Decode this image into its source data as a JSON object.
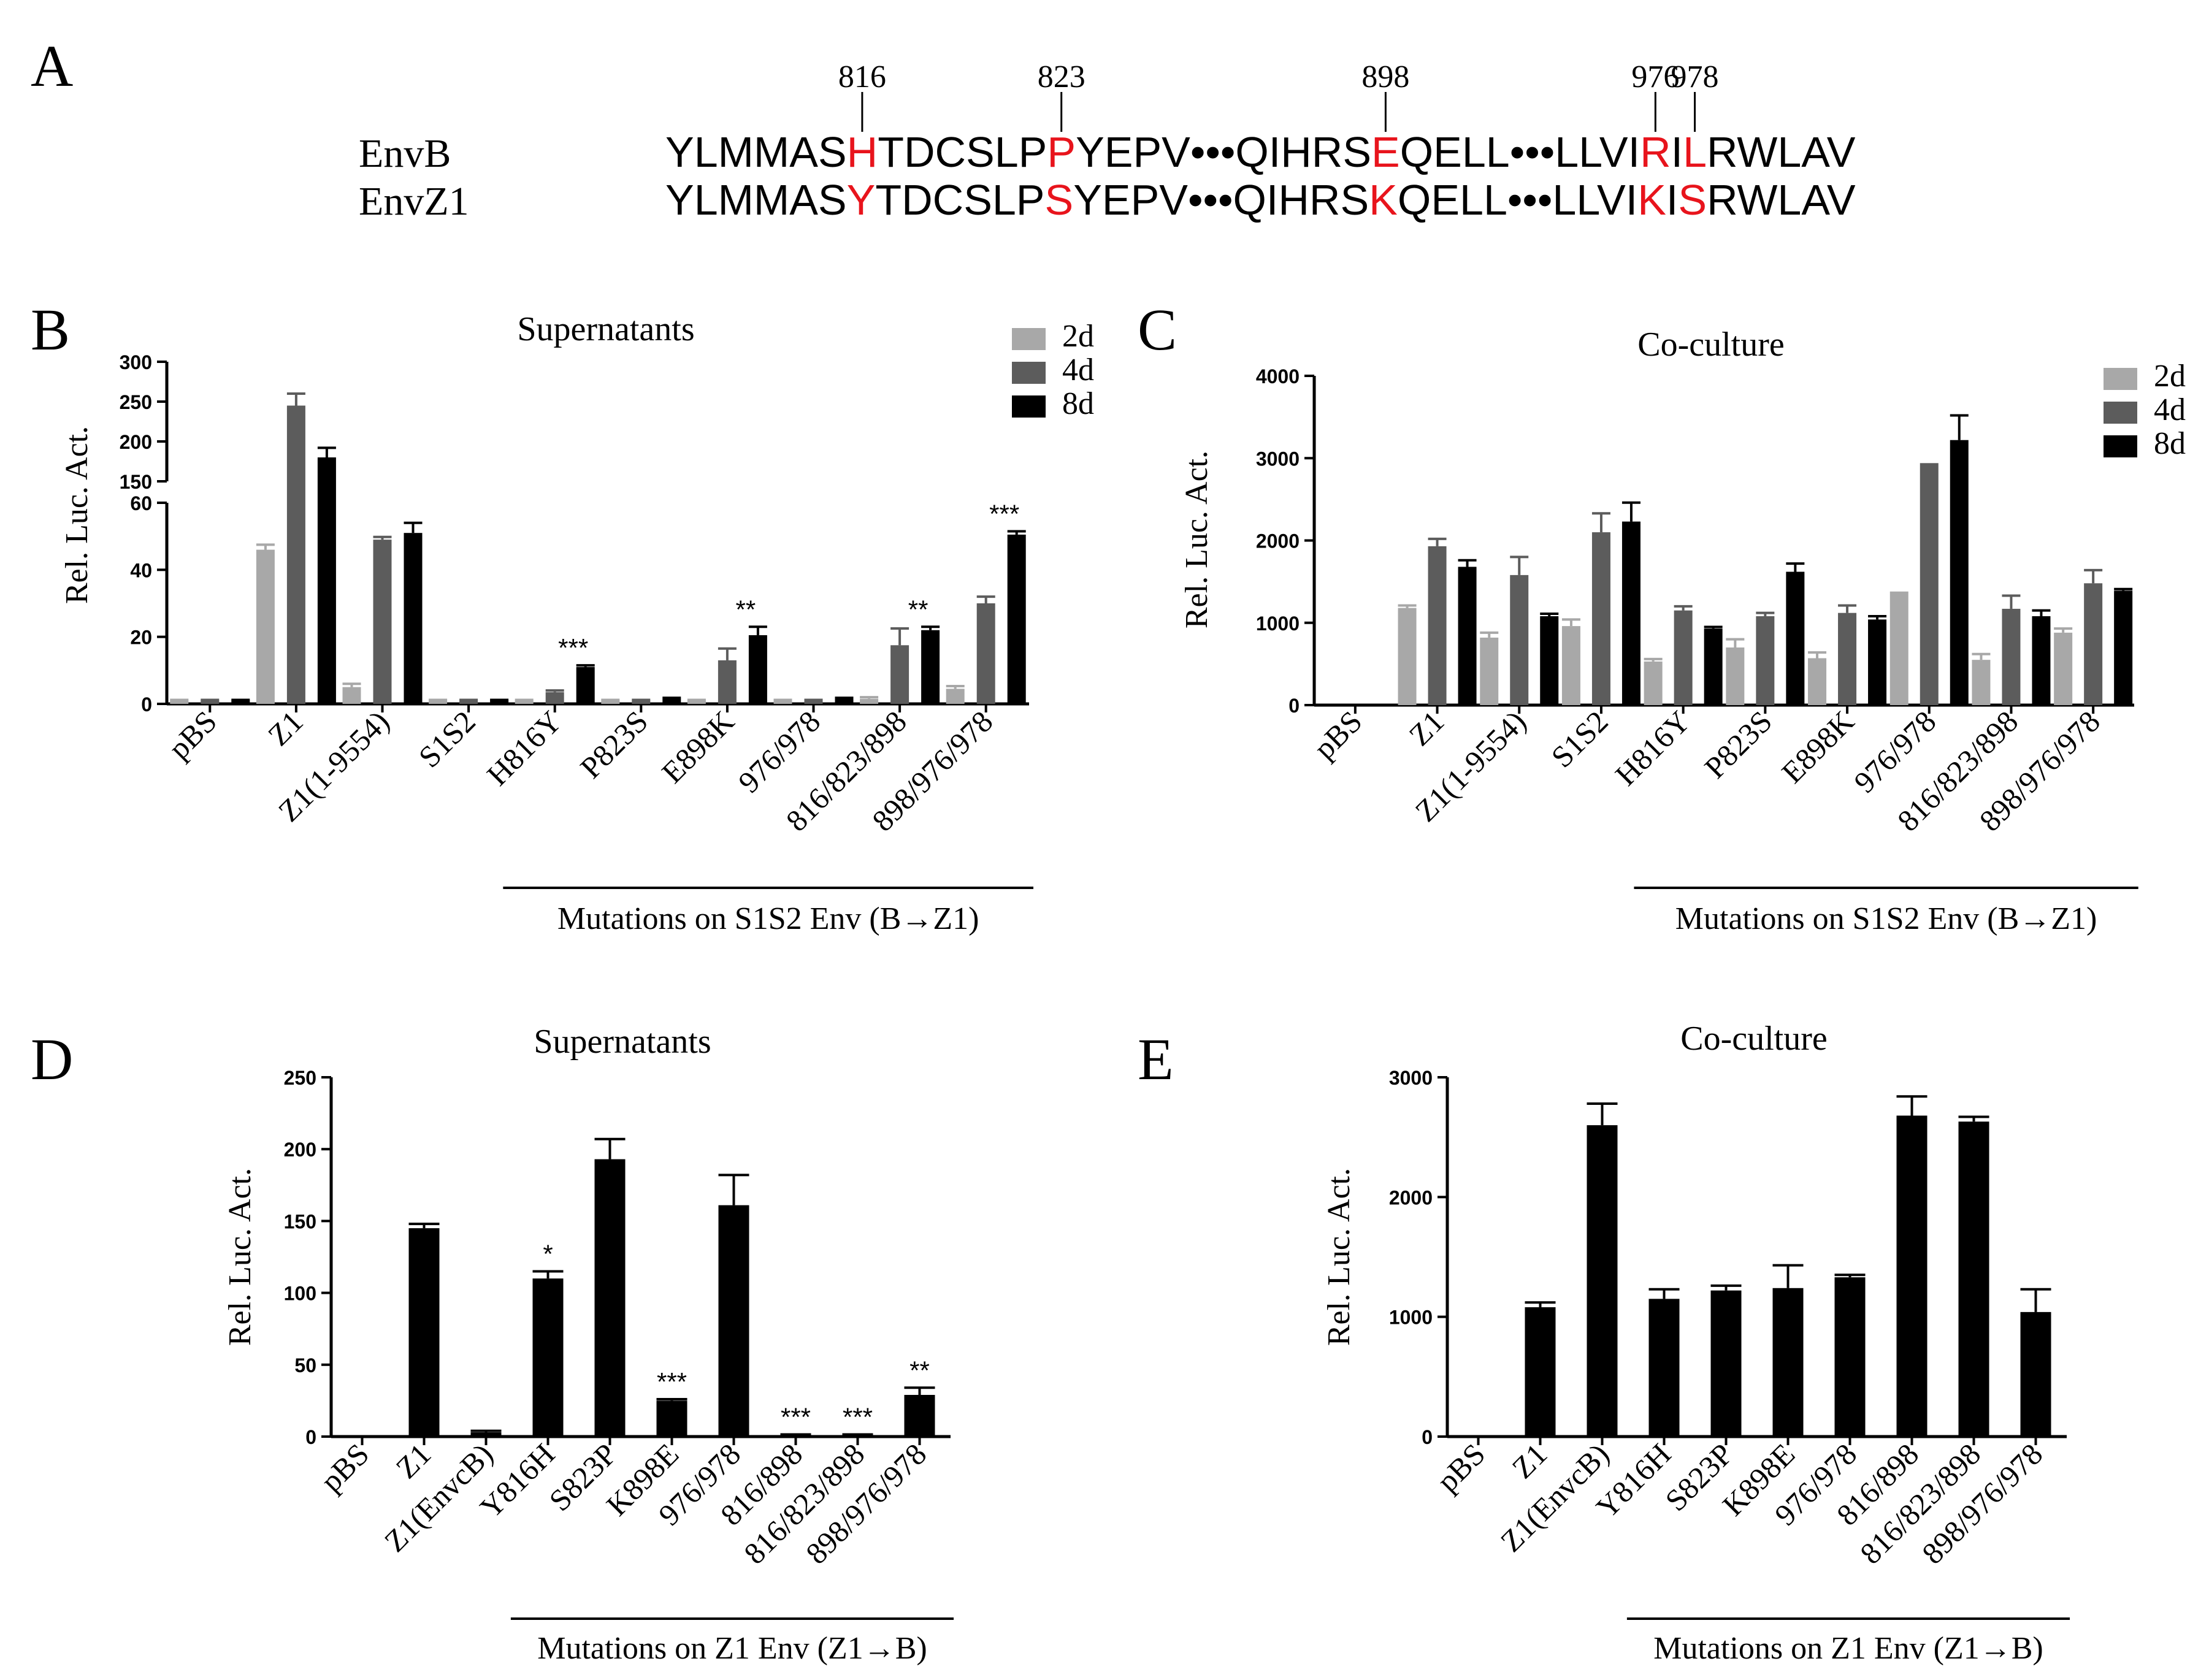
{
  "panels": {
    "A": "A",
    "B": "B",
    "C": "C",
    "D": "D",
    "E": "E"
  },
  "alignment": {
    "rows": [
      {
        "name": "EnvB",
        "segments": [
          {
            "t": "YLMMAS",
            "red": false
          },
          {
            "t": "H",
            "red": true
          },
          {
            "t": "TDCSLP",
            "red": false
          },
          {
            "t": "P",
            "red": true
          },
          {
            "t": "YEPV•••QIHRS",
            "red": false
          },
          {
            "t": "E",
            "red": true
          },
          {
            "t": "QELL•••LLVI",
            "red": false
          },
          {
            "t": "R",
            "red": true
          },
          {
            "t": "I",
            "red": false
          },
          {
            "t": "L",
            "red": true
          },
          {
            "t": "RWLAV",
            "red": false
          }
        ]
      },
      {
        "name": "EnvZ1",
        "segments": [
          {
            "t": "YLMMAS",
            "red": false
          },
          {
            "t": "Y",
            "red": true
          },
          {
            "t": "TDCSLP",
            "red": false
          },
          {
            "t": "S",
            "red": true
          },
          {
            "t": "YEPV•••QIHRS",
            "red": false
          },
          {
            "t": "K",
            "red": true
          },
          {
            "t": "QELL•••LLVI",
            "red": false
          },
          {
            "t": "K",
            "red": true
          },
          {
            "t": "I",
            "red": false
          },
          {
            "t": "S",
            "red": true
          },
          {
            "t": "RWLAV",
            "red": false
          }
        ]
      }
    ],
    "positions": [
      "816",
      "823",
      "898",
      "976",
      "978"
    ]
  },
  "colors": {
    "mutation": "#e8141c",
    "d2": "#a8a8a8",
    "d4": "#5c5c5c",
    "d8": "#000000"
  },
  "legend": {
    "d2": "2d",
    "d4": "4d",
    "d8": "8d"
  },
  "chart_data": [
    {
      "panel": "B",
      "type": "bar",
      "title": "Supernatants",
      "ylabel": "Rel. Luc. Act.",
      "axis_break": true,
      "ylim_lower": [
        0,
        60
      ],
      "ylim_upper": [
        150,
        300
      ],
      "yticks_lower": [
        0,
        20,
        40,
        60
      ],
      "yticks_upper": [
        150,
        200,
        250,
        300
      ],
      "categories": [
        "pBS",
        "Z1",
        "Z1(1-9554)",
        "S1S2",
        "H816Y",
        "P823S",
        "E898K",
        "976/978",
        "816/823/898",
        "898/976/978"
      ],
      "series": [
        {
          "name": "2d",
          "values": [
            1,
            46,
            5,
            1,
            1,
            1,
            1,
            1,
            1.5,
            4.5
          ],
          "errors": [
            0.2,
            1.5,
            1,
            0.2,
            0.2,
            0.2,
            0.2,
            0.2,
            0.5,
            0.8
          ]
        },
        {
          "name": "4d",
          "values": [
            1,
            245,
            49,
            1,
            3.5,
            1,
            13,
            1,
            17.5,
            30
          ],
          "errors": [
            0.2,
            15,
            0.8,
            0.2,
            0.5,
            0.2,
            3.5,
            0.2,
            5,
            2
          ]
        },
        {
          "name": "8d",
          "values": [
            1,
            180,
            51,
            1,
            11,
            1.5,
            20.5,
            1.5,
            22,
            50.5
          ],
          "errors": [
            0.2,
            12,
            3,
            0.2,
            0.5,
            0.3,
            2.5,
            0.3,
            1,
            1
          ]
        }
      ],
      "annotations": [
        {
          "category": "H816Y",
          "text": "***"
        },
        {
          "category": "E898K",
          "text": "**"
        },
        {
          "category": "816/823/898",
          "text": "**"
        },
        {
          "category": "898/976/978",
          "text": "***"
        }
      ],
      "bracket": {
        "from": "H816Y",
        "to": "898/976/978",
        "label": "Mutations on S1S2 Env (B→Z1)"
      }
    },
    {
      "panel": "C",
      "type": "bar",
      "title": "Co-culture",
      "ylabel": "Rel. Luc. Act.",
      "ylim": [
        0,
        4000
      ],
      "yticks": [
        0,
        1000,
        2000,
        3000,
        4000
      ],
      "categories": [
        "pBS",
        "Z1",
        "Z1(1-9554)",
        "S1S2",
        "H816Y",
        "P823S",
        "E898K",
        "976/978",
        "816/823/898",
        "898/976/978"
      ],
      "series": [
        {
          "name": "2d",
          "values": [
            0,
            1180,
            820,
            960,
            530,
            700,
            570,
            1380,
            550,
            880
          ],
          "errors": [
            0,
            30,
            60,
            80,
            30,
            100,
            70,
            0,
            70,
            50
          ]
        },
        {
          "name": "4d",
          "values": [
            0,
            1930,
            1580,
            2100,
            1150,
            1080,
            1120,
            2940,
            1170,
            1480
          ],
          "errors": [
            0,
            90,
            220,
            230,
            50,
            40,
            90,
            0,
            160,
            160
          ]
        },
        {
          "name": "8d",
          "values": [
            0,
            1680,
            1080,
            2230,
            930,
            1620,
            1040,
            3220,
            1080,
            1390
          ],
          "errors": [
            0,
            80,
            30,
            230,
            20,
            100,
            40,
            300,
            70,
            20
          ]
        }
      ],
      "bracket": {
        "from": "H816Y",
        "to": "898/976/978",
        "label": "Mutations on S1S2 Env (B→Z1)"
      }
    },
    {
      "panel": "D",
      "type": "bar",
      "title": "Supernatants",
      "ylabel": "Rel. Luc. Act.",
      "ylim": [
        0,
        250
      ],
      "yticks": [
        0,
        50,
        100,
        150,
        200,
        250
      ],
      "categories": [
        "pBS",
        "Z1",
        "Z1(EnvcB)",
        "Y816H",
        "S823P",
        "K898E",
        "976/978",
        "816/898",
        "816/823/898",
        "898/976/978"
      ],
      "series": [
        {
          "name": "value",
          "values": [
            0.5,
            145,
            3,
            110,
            193,
            25,
            161,
            1,
            1,
            29
          ],
          "errors": [
            0,
            3,
            1,
            5,
            14,
            1,
            21,
            0.5,
            0.5,
            5
          ]
        }
      ],
      "annotations": [
        {
          "category": "Y816H",
          "text": "*"
        },
        {
          "category": "K898E",
          "text": "***"
        },
        {
          "category": "816/898",
          "text": "***"
        },
        {
          "category": "816/823/898",
          "text": "***"
        },
        {
          "category": "898/976/978",
          "text": "**"
        }
      ],
      "bracket": {
        "from": "Y816H",
        "to": "898/976/978",
        "label": "Mutations on Z1 Env (Z1→B)"
      }
    },
    {
      "panel": "E",
      "type": "bar",
      "title": "Co-culture",
      "ylabel": "Rel. Luc. Act.",
      "ylim": [
        0,
        3000
      ],
      "yticks": [
        0,
        1000,
        2000,
        3000
      ],
      "categories": [
        "pBS",
        "Z1",
        "Z1(EnvcB)",
        "Y816H",
        "S823P",
        "K898E",
        "976/978",
        "816/898",
        "816/823/898",
        "898/976/978"
      ],
      "series": [
        {
          "name": "value",
          "values": [
            0,
            1080,
            2600,
            1150,
            1220,
            1240,
            1330,
            2680,
            2630,
            1040
          ],
          "errors": [
            0,
            40,
            180,
            80,
            40,
            190,
            20,
            160,
            40,
            190
          ]
        }
      ],
      "bracket": {
        "from": "Y816H",
        "to": "898/976/978",
        "label": "Mutations on Z1 Env (Z1→B)"
      }
    }
  ]
}
